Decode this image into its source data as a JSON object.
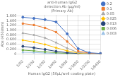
{
  "chart_data": {
    "type": "line",
    "title": "anti-human IgG2\ndetection Ab (μg/ml)\n(Primary Ab)",
    "xlabel": "Human IgG2 (50μL/well coating plate)",
    "ylabel": "Abs (450/mm)",
    "categories": [
      "1/50",
      "1/100",
      "1/200",
      "1/400",
      "1/800",
      "1/1600",
      "1/3200",
      "1/6400"
    ],
    "series": [
      {
        "name": "0.2",
        "color": "#4472C4",
        "marker": "circle",
        "values": [
          1.55,
          1.5,
          1.45,
          1.35,
          0.85,
          0.22,
          0.05,
          0.02
        ]
      },
      {
        "name": "0.1",
        "color": "#ED7D31",
        "marker": "square",
        "values": [
          1.28,
          1.22,
          1.1,
          0.92,
          0.52,
          0.12,
          0.03,
          0.01
        ]
      },
      {
        "name": "0.05",
        "color": "#A9A9A9",
        "marker": "triangle",
        "values": [
          0.88,
          0.8,
          0.68,
          0.48,
          0.24,
          0.06,
          0.02,
          0.01
        ]
      },
      {
        "name": "0.025",
        "color": "#FFC000",
        "marker": "diamond",
        "values": [
          0.58,
          0.5,
          0.4,
          0.26,
          0.13,
          0.04,
          0.01,
          0.01
        ]
      },
      {
        "name": "0.013",
        "color": "#264478",
        "marker": "circle",
        "values": [
          0.32,
          0.26,
          0.19,
          0.11,
          0.05,
          0.02,
          0.01,
          0.01
        ]
      },
      {
        "name": "0.006",
        "color": "#70AD47",
        "marker": "square",
        "values": [
          0.16,
          0.13,
          0.09,
          0.05,
          0.02,
          0.01,
          0.01,
          0.01
        ]
      },
      {
        "name": "0.003",
        "color": "#9DC3E6",
        "marker": "triangle",
        "values": [
          0.07,
          0.06,
          0.04,
          0.02,
          0.01,
          0.01,
          0.01,
          0.01
        ]
      }
    ],
    "ylim": [
      0,
      1.65
    ],
    "yticks": [
      0,
      {
        "value": 0.2,
        "label": "0.200"
      },
      {
        "value": 0.4,
        "label": "0.400"
      },
      {
        "value": 0.6,
        "label": "0.600"
      },
      {
        "value": 0.8,
        "label": "0.800"
      },
      {
        "value": 1.0,
        "label": "1.000"
      },
      {
        "value": 1.2,
        "label": "1.200"
      },
      {
        "value": 1.4,
        "label": "1.400"
      },
      {
        "value": 1.6,
        "label": "1.600"
      }
    ],
    "grid": true,
    "legend": "right"
  }
}
